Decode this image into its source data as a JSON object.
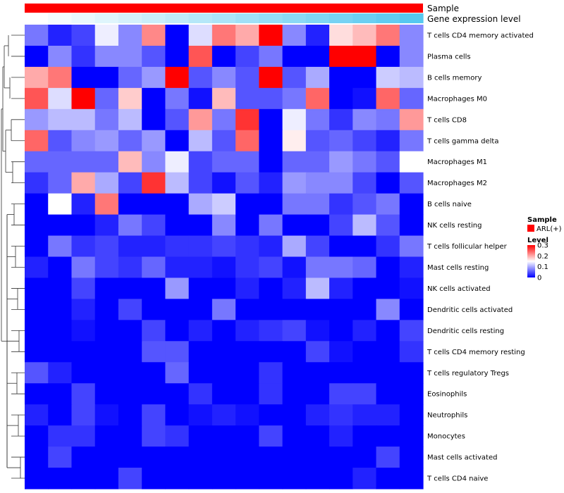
{
  "chart_data": {
    "type": "heatmap",
    "rows": [
      "T cells CD4 memory activated",
      "Plasma cells",
      "B cells memory",
      "Macrophages M0",
      "T cells CD8",
      "T cells gamma delta",
      "Macrophages M1",
      "Macrophages M2",
      "B cells naive",
      "NK cells resting",
      "T cells follicular helper",
      "Mast cells resting",
      "NK cells activated",
      "Dendritic cells activated",
      "Dendritic cells resting",
      "T cells CD4 memory resting",
      "T cells regulatory  Tregs",
      "Eosinophils",
      "Neutrophils",
      "Monocytes",
      "Mast cells activated",
      "T cells CD4 naive"
    ],
    "values": [
      [
        0.07,
        0.02,
        0.04,
        0.14,
        0.08,
        0.22,
        0.0,
        0.13,
        0.23,
        0.2,
        0.3,
        0.08,
        0.02,
        0.17,
        0.19,
        0.23,
        0.08
      ],
      [
        0.0,
        0.08,
        0.03,
        0.08,
        0.08,
        0.05,
        0.0,
        0.25,
        0.0,
        0.04,
        0.07,
        0.0,
        0.0,
        0.3,
        0.31,
        0.0,
        0.08
      ],
      [
        0.2,
        0.23,
        0.0,
        0.0,
        0.06,
        0.09,
        0.3,
        0.05,
        0.08,
        0.05,
        0.3,
        0.05,
        0.1,
        0.0,
        0.0,
        0.12,
        0.11
      ],
      [
        0.25,
        0.13,
        0.3,
        0.06,
        0.18,
        0.0,
        0.07,
        0.01,
        0.19,
        0.05,
        0.05,
        0.07,
        0.24,
        0.0,
        0.01,
        0.24,
        0.06
      ],
      [
        0.09,
        0.11,
        0.11,
        0.07,
        0.11,
        0.0,
        0.05,
        0.21,
        0.07,
        0.27,
        0.0,
        0.14,
        0.07,
        0.03,
        0.08,
        0.07,
        0.21
      ],
      [
        0.24,
        0.05,
        0.08,
        0.09,
        0.06,
        0.09,
        0.0,
        0.11,
        0.05,
        0.24,
        0.0,
        0.16,
        0.05,
        0.06,
        0.04,
        0.02,
        0.07
      ],
      [
        0.06,
        0.06,
        0.06,
        0.06,
        0.19,
        0.08,
        0.14,
        0.04,
        0.06,
        0.06,
        0.0,
        0.06,
        0.06,
        0.09,
        0.07,
        0.05,
        0.15
      ],
      [
        0.03,
        0.06,
        0.2,
        0.1,
        0.04,
        0.27,
        0.11,
        0.04,
        0.01,
        0.05,
        0.02,
        0.09,
        0.08,
        0.08,
        0.04,
        0.0,
        0.05
      ],
      [
        0.0,
        0.15,
        0.02,
        0.23,
        0.0,
        0.0,
        0.0,
        0.1,
        0.12,
        0.0,
        0.0,
        0.07,
        0.07,
        0.03,
        0.05,
        0.07,
        0.0
      ],
      [
        0.0,
        0.0,
        0.0,
        0.02,
        0.07,
        0.04,
        0.0,
        0.0,
        0.08,
        0.0,
        0.07,
        0.0,
        0.0,
        0.04,
        0.11,
        0.05,
        0.0
      ],
      [
        0.0,
        0.07,
        0.03,
        0.04,
        0.02,
        0.02,
        0.03,
        0.03,
        0.04,
        0.03,
        0.02,
        0.1,
        0.04,
        0.0,
        0.0,
        0.03,
        0.07
      ],
      [
        0.02,
        0.0,
        0.07,
        0.04,
        0.03,
        0.06,
        0.02,
        0.02,
        0.01,
        0.03,
        0.04,
        0.01,
        0.07,
        0.07,
        0.06,
        0.0,
        0.02
      ],
      [
        0.0,
        0.0,
        0.04,
        0.0,
        0.0,
        0.0,
        0.09,
        0.0,
        0.0,
        0.02,
        0.0,
        0.02,
        0.11,
        0.02,
        0.0,
        0.0,
        0.01
      ],
      [
        0.0,
        0.0,
        0.02,
        0.0,
        0.04,
        0.0,
        0.0,
        0.0,
        0.07,
        0.0,
        0.0,
        0.0,
        0.0,
        0.0,
        0.0,
        0.08,
        0.0
      ],
      [
        0.0,
        0.0,
        0.01,
        0.0,
        0.0,
        0.04,
        0.0,
        0.02,
        0.0,
        0.02,
        0.03,
        0.04,
        0.01,
        0.0,
        0.02,
        0.0,
        0.04
      ],
      [
        0.0,
        0.0,
        0.0,
        0.0,
        0.0,
        0.05,
        0.05,
        0.0,
        0.0,
        0.0,
        0.0,
        0.0,
        0.04,
        0.01,
        0.0,
        0.0,
        0.03
      ],
      [
        0.05,
        0.02,
        0.0,
        0.0,
        0.0,
        0.0,
        0.06,
        0.0,
        0.0,
        0.0,
        0.03,
        0.0,
        0.0,
        0.0,
        0.0,
        0.0,
        0.0
      ],
      [
        0.0,
        0.0,
        0.04,
        0.0,
        0.0,
        0.0,
        0.0,
        0.03,
        0.0,
        0.0,
        0.03,
        0.0,
        0.0,
        0.04,
        0.04,
        0.0,
        0.0
      ],
      [
        0.02,
        0.0,
        0.04,
        0.01,
        0.0,
        0.04,
        0.0,
        0.01,
        0.02,
        0.01,
        0.0,
        0.0,
        0.02,
        0.03,
        0.02,
        0.02,
        0.0
      ],
      [
        0.0,
        0.03,
        0.03,
        0.0,
        0.0,
        0.04,
        0.03,
        0.0,
        0.0,
        0.0,
        0.04,
        0.0,
        0.0,
        0.02,
        0.0,
        0.0,
        0.0
      ],
      [
        0.0,
        0.04,
        0.0,
        0.0,
        0.0,
        0.0,
        0.0,
        0.0,
        0.0,
        0.0,
        0.0,
        0.0,
        0.0,
        0.0,
        0.0,
        0.04,
        0.0
      ],
      [
        0.0,
        0.0,
        0.0,
        0.0,
        0.04,
        0.0,
        0.0,
        0.0,
        0.0,
        0.0,
        0.0,
        0.0,
        0.0,
        0.0,
        0.02,
        0.0,
        0.0
      ]
    ],
    "annotations": [
      {
        "label": "Sample",
        "color": "#ff0000"
      },
      {
        "label": "Gene expression level",
        "gradient": [
          "#ffffff",
          "#56c8f0"
        ]
      }
    ],
    "legend": {
      "sample_title": "Sample",
      "sample_item": "ARL(+)",
      "sample_color": "#ff0000",
      "level_title": "Level",
      "level_ticks": [
        "0.3",
        "0.2",
        "0.1",
        "0"
      ],
      "level_tick_values": [
        0.3,
        0.2,
        0.1,
        0
      ],
      "level_range": [
        0,
        0.3
      ],
      "placement": "right"
    },
    "colorscale": {
      "low": "#0000ff",
      "mid": "#ffffff",
      "high": "#ff0000",
      "min": 0,
      "max": 0.3
    },
    "dendrogram": "rows-left"
  }
}
